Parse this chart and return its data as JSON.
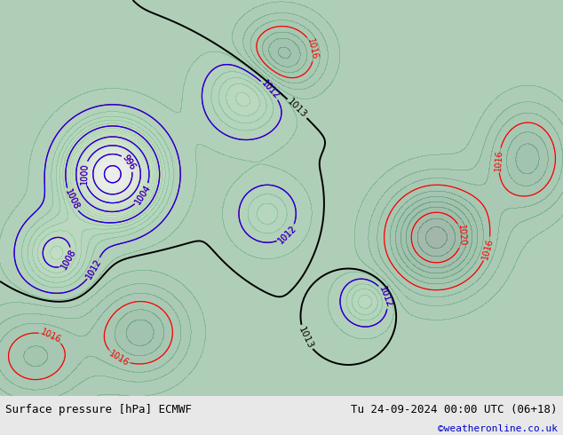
{
  "title_left": "Surface pressure [hPa] ECMWF",
  "title_right": "Tu 24-09-2024 00:00 UTC (06+18)",
  "credit": "©weatheronline.co.uk",
  "fig_width": 6.34,
  "fig_height": 4.9,
  "dpi": 100,
  "bottom_bar_color": "#e8e8e8",
  "label_fontsize": 9,
  "credit_color": "#0000cc",
  "credit_fontsize": 8,
  "map_bg_green": "#c8e8b0"
}
